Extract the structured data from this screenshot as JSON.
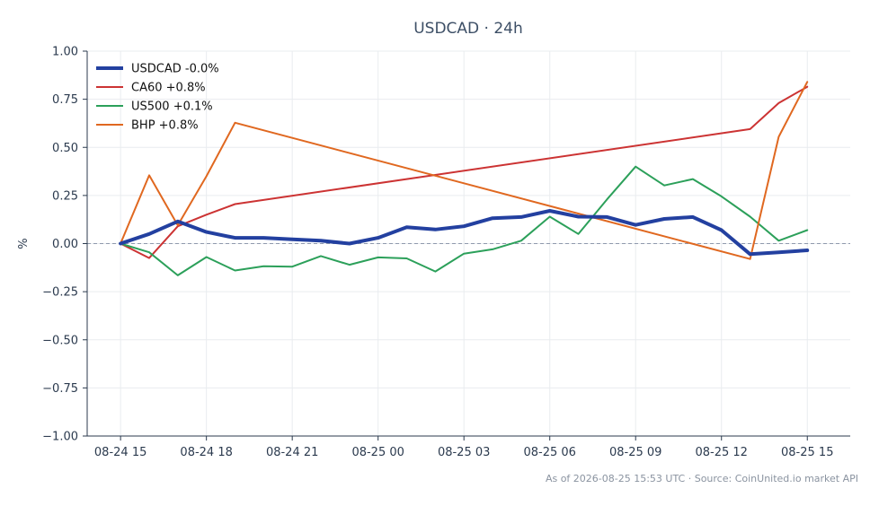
{
  "chart_data": {
    "type": "line",
    "title": "USDCAD · 24h",
    "ylabel": "%",
    "xlabel": "",
    "ylim": [
      -1.0,
      1.0
    ],
    "yticks": [
      1.0,
      0.75,
      0.5,
      0.25,
      0.0,
      -0.25,
      -0.5,
      -0.75,
      -1.0
    ],
    "ytick_labels": [
      "1.00",
      "0.75",
      "0.50",
      "0.25",
      "0.00",
      "−0.25",
      "−0.50",
      "−0.75",
      "−1.00"
    ],
    "xlim": [
      "08-24 13:50",
      "08-25 16:30"
    ],
    "xticks": [
      "08-24 15:00",
      "08-24 18:00",
      "08-24 21:00",
      "08-25 00:00",
      "08-25 03:00",
      "08-25 06:00",
      "08-25 09:00",
      "08-25 12:00",
      "08-25 15:00"
    ],
    "xtick_labels": [
      "08-24 15",
      "08-24 18",
      "08-24 21",
      "08-25 00",
      "08-25 03",
      "08-25 06",
      "08-25 09",
      "08-25 12",
      "08-25 15"
    ],
    "grid": true,
    "legend_position": "top-left",
    "zero_line": true,
    "series": [
      {
        "name": "USDCAD -0.0%",
        "color": "#2340a0",
        "width": 4,
        "points": [
          [
            "08-24 15:00",
            0.0
          ],
          [
            "08-24 16:00",
            0.05
          ],
          [
            "08-24 17:00",
            0.115
          ],
          [
            "08-24 18:00",
            0.06
          ],
          [
            "08-24 19:00",
            0.03
          ],
          [
            "08-24 20:00",
            0.03
          ],
          [
            "08-24 21:00",
            0.022
          ],
          [
            "08-24 22:00",
            0.015
          ],
          [
            "08-24 23:00",
            0.0
          ],
          [
            "08-25 00:00",
            0.03
          ],
          [
            "08-25 01:00",
            0.085
          ],
          [
            "08-25 02:00",
            0.073
          ],
          [
            "08-25 03:00",
            0.09
          ],
          [
            "08-25 04:00",
            0.132
          ],
          [
            "08-25 05:00",
            0.138
          ],
          [
            "08-25 06:00",
            0.17
          ],
          [
            "08-25 07:00",
            0.14
          ],
          [
            "08-25 08:00",
            0.138
          ],
          [
            "08-25 09:00",
            0.097
          ],
          [
            "08-25 10:00",
            0.128
          ],
          [
            "08-25 11:00",
            0.138
          ],
          [
            "08-25 12:00",
            0.07
          ],
          [
            "08-25 13:00",
            -0.055
          ],
          [
            "08-25 14:00",
            -0.045
          ],
          [
            "08-25 15:00",
            -0.035
          ]
        ]
      },
      {
        "name": "CA60 +0.8%",
        "color": "#cc3333",
        "width": 2,
        "points": [
          [
            "08-24 15:00",
            0.0
          ],
          [
            "08-24 16:00",
            -0.075
          ],
          [
            "08-24 17:00",
            0.09
          ],
          [
            "08-24 18:00",
            0.15
          ],
          [
            "08-24 19:00",
            0.205
          ],
          [
            "08-25 13:00",
            0.595
          ],
          [
            "08-25 14:00",
            0.73
          ],
          [
            "08-25 15:00",
            0.815
          ]
        ]
      },
      {
        "name": "US500 +0.1%",
        "color": "#2ca05a",
        "width": 2,
        "points": [
          [
            "08-24 15:00",
            0.0
          ],
          [
            "08-24 16:00",
            -0.045
          ],
          [
            "08-24 17:00",
            -0.165
          ],
          [
            "08-24 18:00",
            -0.07
          ],
          [
            "08-24 19:00",
            -0.14
          ],
          [
            "08-24 20:00",
            -0.118
          ],
          [
            "08-24 21:00",
            -0.12
          ],
          [
            "08-24 22:00",
            -0.065
          ],
          [
            "08-24 23:00",
            -0.11
          ],
          [
            "08-25 00:00",
            -0.072
          ],
          [
            "08-25 01:00",
            -0.077
          ],
          [
            "08-25 02:00",
            -0.145
          ],
          [
            "08-25 03:00",
            -0.052
          ],
          [
            "08-25 04:00",
            -0.03
          ],
          [
            "08-25 05:00",
            0.015
          ],
          [
            "08-25 06:00",
            0.14
          ],
          [
            "08-25 07:00",
            0.05
          ],
          [
            "08-25 08:00",
            0.23
          ],
          [
            "08-25 09:00",
            0.4
          ],
          [
            "08-25 10:00",
            0.302
          ],
          [
            "08-25 11:00",
            0.335
          ],
          [
            "08-25 12:00",
            0.245
          ],
          [
            "08-25 13:00",
            0.14
          ],
          [
            "08-25 14:00",
            0.015
          ],
          [
            "08-25 15:00",
            0.07
          ]
        ]
      },
      {
        "name": "BHP +0.8%",
        "color": "#e06820",
        "width": 2,
        "points": [
          [
            "08-24 15:00",
            0.0
          ],
          [
            "08-24 16:00",
            0.355
          ],
          [
            "08-24 17:00",
            0.095
          ],
          [
            "08-24 18:00",
            0.35
          ],
          [
            "08-24 19:00",
            0.628
          ],
          [
            "08-25 13:00",
            -0.08
          ],
          [
            "08-25 14:00",
            0.555
          ],
          [
            "08-25 15:00",
            0.84
          ]
        ]
      }
    ]
  },
  "footer": "As of 2026-08-25 15:53 UTC · Source: CoinUnited.io market API"
}
